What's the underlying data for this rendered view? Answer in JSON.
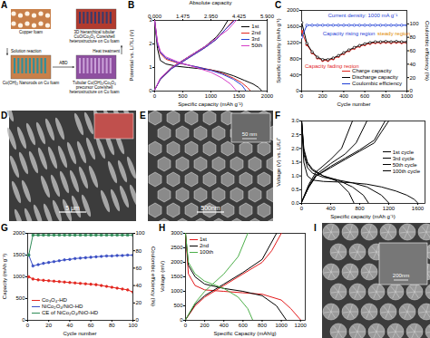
{
  "chart_data": [
    {
      "panel": "B",
      "type": "line",
      "x_label": "Specific capacity (mAh g⁻¹)",
      "y_label": "Potential vs. Li⁺/Li (V)",
      "x2_label": "Absolute capacity",
      "xlim": [
        0,
        2000
      ],
      "xticks": [
        0,
        500,
        1000,
        1500,
        2000
      ],
      "ylim": [
        0,
        3
      ],
      "yticks": [
        0,
        1,
        2,
        3
      ],
      "x2lim": [
        0,
        5.9
      ],
      "x2ticks": [
        {
          "value": 0,
          "label": "0.000"
        },
        {
          "value": 1.475,
          "label": "1.475"
        },
        {
          "value": 2.95,
          "label": "2.950"
        },
        {
          "value": 4.425,
          "label": "4.425"
        },
        {
          "value": 5.9,
          "label": "5.900"
        }
      ],
      "legend": "top-right",
      "series": [
        {
          "name": "1st",
          "color": "#000000",
          "x": [
            0,
            50,
            100,
            200,
            400,
            600,
            800,
            1000,
            1200,
            1400,
            1600,
            1750,
            1850,
            1900,
            null,
            0,
            100,
            300,
            500,
            700,
            900,
            1100,
            1200,
            1300
          ],
          "values": [
            3.0,
            1.8,
            1.3,
            1.15,
            1.05,
            1.0,
            0.95,
            0.9,
            0.8,
            0.65,
            0.45,
            0.3,
            0.15,
            0.02,
            null,
            0.05,
            0.5,
            1.0,
            1.3,
            1.6,
            1.9,
            2.3,
            2.6,
            3.0
          ]
        },
        {
          "name": "2nd",
          "color": "#e3261f",
          "x": [
            0,
            50,
            100,
            200,
            400,
            600,
            800,
            1000,
            1200,
            1400,
            1550,
            1650,
            1700,
            null,
            0,
            100,
            300,
            500,
            700,
            900,
            1100,
            1250,
            1400
          ],
          "values": [
            3.0,
            2.0,
            1.6,
            1.35,
            1.2,
            1.1,
            1.0,
            0.9,
            0.75,
            0.55,
            0.35,
            0.15,
            0.02,
            null,
            0.05,
            0.5,
            0.95,
            1.25,
            1.55,
            1.85,
            2.2,
            2.6,
            3.0
          ]
        },
        {
          "name": "3rd",
          "color": "#1f3fd6",
          "x": [
            0,
            50,
            100,
            200,
            400,
            600,
            800,
            1000,
            1200,
            1400,
            1550,
            1620,
            null,
            0,
            100,
            300,
            500,
            700,
            900,
            1100,
            1250,
            1420
          ],
          "values": [
            3.0,
            2.0,
            1.65,
            1.4,
            1.22,
            1.1,
            1.0,
            0.88,
            0.72,
            0.5,
            0.25,
            0.02,
            null,
            0.05,
            0.5,
            0.95,
            1.25,
            1.55,
            1.85,
            2.2,
            2.6,
            3.0
          ]
        },
        {
          "name": "50th",
          "color": "#d63fc9",
          "x": [
            0,
            50,
            100,
            200,
            400,
            600,
            800,
            1000,
            1200,
            1350,
            1450,
            null,
            0,
            100,
            300,
            500,
            700,
            900,
            1100,
            1300,
            1450
          ],
          "values": [
            3.0,
            2.1,
            1.7,
            1.45,
            1.25,
            1.1,
            0.95,
            0.8,
            0.55,
            0.3,
            0.02,
            null,
            0.05,
            0.55,
            1.0,
            1.3,
            1.6,
            1.9,
            2.25,
            2.6,
            3.0
          ]
        }
      ]
    },
    {
      "panel": "C",
      "type": "line",
      "x_label": "Cycle number",
      "y_label": "Specific capacity (mAh g⁻¹)",
      "y2_label": "Coulombic efficiency (%)",
      "xlim": [
        0,
        1000
      ],
      "xticks": [
        0,
        200,
        400,
        600,
        800,
        1000
      ],
      "ylim": [
        0,
        2000
      ],
      "yticks": [
        0,
        400,
        800,
        1200,
        1600,
        2000
      ],
      "y2lim": [
        0,
        120
      ],
      "y2ticks": [
        0,
        20,
        40,
        60,
        80,
        100
      ],
      "legend": "bottom-right",
      "annotations": [
        {
          "text": "Current density: 1000 mA g⁻¹",
          "x": 250,
          "y": 1880,
          "color": "#1f3fd6"
        },
        {
          "text": "Capacity rising region",
          "x": 200,
          "y": 1420,
          "color": "#1f3fd6"
        },
        {
          "text": "steady region",
          "x": 720,
          "y": 1420,
          "color": "#e08a00"
        },
        {
          "text": "Capacity fading region",
          "x": 30,
          "y": 620,
          "color": "#e3261f"
        }
      ],
      "series": [
        {
          "name": "Charge capacity",
          "color": "#e3261f",
          "marker": "circle",
          "x": [
            1,
            50,
            100,
            150,
            200,
            250,
            300,
            350,
            400,
            450,
            500,
            550,
            600,
            650,
            700,
            750,
            800,
            850,
            900,
            950,
            1000
          ],
          "values": [
            1480,
            1150,
            950,
            820,
            760,
            760,
            800,
            860,
            930,
            1000,
            1060,
            1110,
            1150,
            1180,
            1200,
            1200,
            1210,
            1200,
            1210,
            1200,
            1200
          ]
        },
        {
          "name": "Discharge capacity",
          "color": "#000000",
          "marker": "open_circle",
          "x": [
            1,
            50,
            100,
            150,
            200,
            250,
            300,
            350,
            400,
            450,
            500,
            550,
            600,
            650,
            700,
            750,
            800,
            850,
            900,
            950,
            1000
          ],
          "values": [
            1700,
            1180,
            970,
            840,
            780,
            780,
            820,
            880,
            950,
            1020,
            1080,
            1130,
            1170,
            1200,
            1220,
            1220,
            1230,
            1220,
            1230,
            1220,
            1220
          ]
        },
        {
          "name": "Coulombic efficiency",
          "color": "#1f3fd6",
          "marker": "open_circle",
          "axis": "y2",
          "x": [
            1,
            50,
            100,
            150,
            200,
            250,
            300,
            350,
            400,
            450,
            500,
            550,
            600,
            650,
            700,
            750,
            800,
            850,
            900,
            950,
            1000
          ],
          "values": [
            80,
            98,
            98,
            98,
            98,
            98,
            98,
            98,
            98,
            98,
            98,
            98,
            98,
            98,
            98,
            98,
            98,
            98,
            98,
            98,
            98
          ]
        }
      ]
    },
    {
      "panel": "F",
      "type": "line",
      "x_label": "Specific capacity (mAh g⁻¹)",
      "y_label": "Voltage (V) vs. Li/Li⁺",
      "xlim": [
        0,
        1700
      ],
      "xticks": [
        0,
        400,
        800,
        1200,
        1600
      ],
      "ylim": [
        0,
        3
      ],
      "yticks": [
        {
          "value": 0,
          "label": "0.0"
        },
        0.5,
        {
          "value": 1,
          "label": "1.0"
        },
        1.5,
        {
          "value": 2,
          "label": "2.0"
        },
        2.5,
        {
          "value": 3,
          "label": "3.0"
        }
      ],
      "legend": "right",
      "series": [
        {
          "name": "1st cycle",
          "color": "#000000",
          "x": [
            0,
            30,
            80,
            150,
            300,
            500,
            700,
            900,
            1100,
            1300,
            1450,
            1550,
            1600,
            null,
            0,
            100,
            200,
            400,
            600,
            800,
            1000,
            1100,
            1200
          ],
          "values": [
            3.0,
            1.5,
            1.0,
            0.85,
            0.8,
            0.78,
            0.75,
            0.7,
            0.6,
            0.45,
            0.3,
            0.15,
            0.02,
            null,
            0.05,
            0.6,
            1.0,
            1.3,
            1.6,
            1.9,
            2.2,
            2.6,
            3.0
          ]
        },
        {
          "name": "3rd cycle",
          "color": "#000000",
          "x": [
            0,
            30,
            80,
            150,
            300,
            500,
            700,
            900,
            1100,
            1200,
            null,
            0,
            100,
            200,
            400,
            600,
            800,
            1000,
            1150
          ],
          "values": [
            3.0,
            1.8,
            1.3,
            1.1,
            0.95,
            0.85,
            0.75,
            0.6,
            0.3,
            0.02,
            null,
            0.05,
            0.6,
            1.0,
            1.35,
            1.65,
            1.95,
            2.3,
            3.0
          ]
        },
        {
          "name": "50th cycle",
          "color": "#000000",
          "x": [
            0,
            30,
            80,
            150,
            300,
            500,
            700,
            850,
            920,
            null,
            0,
            100,
            200,
            400,
            600,
            750,
            900
          ],
          "values": [
            3.0,
            1.9,
            1.45,
            1.2,
            1.0,
            0.85,
            0.6,
            0.3,
            0.02,
            null,
            0.05,
            0.65,
            1.05,
            1.45,
            1.8,
            2.2,
            3.0
          ]
        },
        {
          "name": "100th cycle",
          "color": "#000000",
          "x": [
            0,
            30,
            80,
            150,
            300,
            500,
            650,
            720,
            null,
            0,
            100,
            200,
            400,
            550,
            700
          ],
          "values": [
            3.0,
            2.0,
            1.5,
            1.25,
            1.0,
            0.8,
            0.4,
            0.02,
            null,
            0.05,
            0.7,
            1.15,
            1.6,
            2.0,
            3.0
          ]
        }
      ]
    },
    {
      "panel": "G",
      "type": "line",
      "x_label": "Cycle number",
      "y_label": "Capacity (mAh g⁻¹)",
      "y2_label": "Coulombic efficiency (%)",
      "xlim": [
        0,
        100
      ],
      "xticks": [
        0,
        20,
        40,
        60,
        80,
        100
      ],
      "ylim": [
        0,
        2000
      ],
      "yticks": [
        0,
        500,
        1000,
        1500,
        2000
      ],
      "y2lim": [
        0,
        100
      ],
      "y2ticks": [
        0,
        20,
        40,
        60,
        80,
        100
      ],
      "legend": "bottom-left",
      "series": [
        {
          "name": "Co₃O₄-HD",
          "color": "#e3261f",
          "marker": "circle",
          "x": [
            1,
            5,
            10,
            15,
            20,
            25,
            30,
            35,
            40,
            45,
            50,
            55,
            60,
            65,
            70,
            75,
            80,
            85,
            90,
            95,
            100
          ],
          "values": [
            1000,
            950,
            930,
            920,
            910,
            900,
            890,
            880,
            870,
            860,
            850,
            840,
            830,
            820,
            800,
            780,
            760,
            740,
            720,
            700,
            650
          ]
        },
        {
          "name": "NiCo₂O₄/NiO-HD",
          "color": "#3b4fc4",
          "marker": "circle",
          "x": [
            1,
            5,
            10,
            15,
            20,
            25,
            30,
            35,
            40,
            45,
            50,
            55,
            60,
            65,
            70,
            75,
            80,
            85,
            90,
            95,
            100
          ],
          "values": [
            1500,
            1250,
            1280,
            1310,
            1330,
            1350,
            1370,
            1390,
            1400,
            1420,
            1430,
            1440,
            1450,
            1460,
            1470,
            1480,
            1480,
            1490,
            1490,
            1500,
            1500
          ]
        },
        {
          "name": "CE of NiCo₂O₄/NiO-HD",
          "color": "#2e8b57",
          "marker": "square",
          "axis": "y2",
          "x": [
            1,
            5,
            10,
            15,
            20,
            25,
            30,
            35,
            40,
            45,
            50,
            55,
            60,
            65,
            70,
            75,
            80,
            85,
            90,
            95,
            100
          ],
          "values": [
            75,
            98,
            98,
            98,
            98,
            98,
            98,
            98,
            98,
            98,
            98,
            98,
            98,
            98,
            98,
            98,
            98,
            98,
            98,
            98,
            98
          ]
        }
      ]
    },
    {
      "panel": "H",
      "type": "line",
      "x_label": "Specific Capacity (mAh/g)",
      "y_label": "Voltage (mV)",
      "xlim": [
        0,
        1250
      ],
      "xticks": [
        0,
        200,
        400,
        600,
        800,
        1000,
        1200
      ],
      "ylim": [
        0,
        3000
      ],
      "yticks": [
        0,
        500,
        1000,
        1500,
        2000,
        2500,
        3000
      ],
      "legend": "top-left",
      "series": [
        {
          "name": "1st",
          "color": "#e41a1c",
          "x": [
            0,
            30,
            100,
            200,
            400,
            600,
            800,
            1000,
            1100,
            1200,
            null,
            0,
            100,
            200,
            400,
            600,
            800,
            900,
            1000
          ],
          "values": [
            3000,
            1600,
            1200,
            1050,
            1000,
            950,
            900,
            700,
            400,
            20,
            null,
            20,
            500,
            800,
            1200,
            1600,
            2000,
            2400,
            3000
          ]
        },
        {
          "name": "2nd",
          "color": "#000000",
          "x": [
            0,
            30,
            100,
            200,
            400,
            600,
            800,
            950,
            1050,
            null,
            0,
            100,
            200,
            400,
            600,
            800,
            950
          ],
          "values": [
            3000,
            1900,
            1500,
            1250,
            1100,
            1000,
            850,
            500,
            20,
            null,
            20,
            550,
            850,
            1250,
            1650,
            2100,
            3000
          ]
        },
        {
          "name": "100th",
          "color": "#4daf4a",
          "x": [
            0,
            30,
            100,
            200,
            400,
            550,
            650,
            700,
            null,
            0,
            100,
            200,
            400,
            550,
            650
          ],
          "values": [
            3000,
            2000,
            1600,
            1350,
            1100,
            800,
            400,
            20,
            null,
            20,
            600,
            1000,
            1600,
            2200,
            3000
          ]
        }
      ]
    }
  ],
  "images": [
    {
      "panel": "A",
      "cells": [
        "Copper foam",
        "3D hierarchical tubular CuO/Co₃O₄ Core/shell heterostructure on Cu foam",
        "Co(OH)₂ Nanorods on Cu foam",
        "Tubular Cu(OH)₂/Co₃O₄ precursor Core/shell heterostructure on Cu foam"
      ],
      "steps": [
        "Solution reaction",
        "ABD",
        "Heat treatment"
      ]
    },
    {
      "panel": "D",
      "scale_bar": "5 μm"
    },
    {
      "panel": "E",
      "scale_bar": "500nm",
      "inset_scale_bar": "50 nm"
    },
    {
      "panel": "I",
      "inset_scale_bar": "200nm"
    }
  ]
}
